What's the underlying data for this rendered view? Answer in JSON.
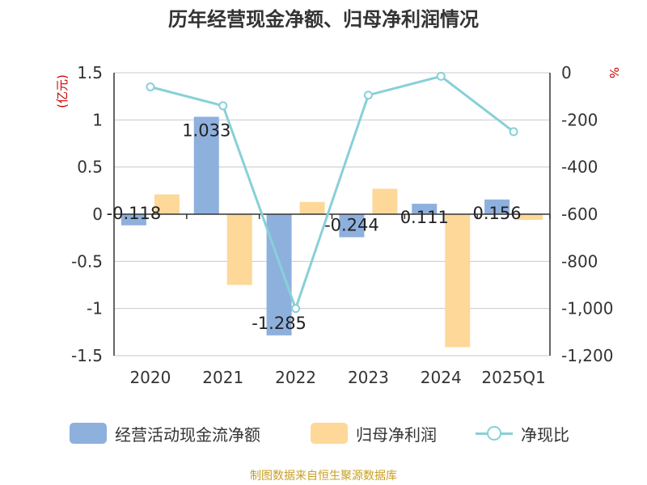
{
  "chart_data": {
    "type": "bar+line",
    "title": "历年经营现金净额、归母净利润情况",
    "left_axis_unit": "(亿元)",
    "right_axis_unit": "%",
    "categories": [
      "2020",
      "2021",
      "2022",
      "2023",
      "2024",
      "2025Q1"
    ],
    "left_ylim": [
      -1.5,
      1.5
    ],
    "left_ticks": [
      1.5,
      1,
      0.5,
      0,
      -0.5,
      -1,
      -1.5
    ],
    "right_ylim": [
      -1200,
      0
    ],
    "right_ticks": [
      0,
      -200,
      -400,
      -600,
      -800,
      -1000,
      -1200
    ],
    "right_tick_labels": [
      "0",
      "-200",
      "-400",
      "-600",
      "-800",
      "-1,000",
      "-1,200"
    ],
    "grid": true,
    "legend_position": "bottom",
    "series": [
      {
        "name": "经营活动现金流净额",
        "kind": "bar",
        "axis": "left",
        "color": "#8EB0DD",
        "values": [
          -0.118,
          1.033,
          -1.285,
          -0.244,
          0.111,
          0.156
        ],
        "data_labels": [
          "-0.118",
          "1.033",
          "-1.285",
          "-0.244",
          "0.111",
          "0.156"
        ]
      },
      {
        "name": "归母净利润",
        "kind": "bar",
        "axis": "left",
        "color": "#FDD899",
        "values": [
          0.21,
          -0.75,
          0.13,
          0.27,
          -1.41,
          -0.06
        ]
      },
      {
        "name": "净现比",
        "kind": "line",
        "axis": "right",
        "color": "#88D0D8",
        "values": [
          -60,
          -140,
          -1000,
          -95,
          -15,
          -250
        ]
      }
    ]
  },
  "source": {
    "text": "制图数据来自恒生聚源数据库",
    "color": "#C8A024"
  }
}
